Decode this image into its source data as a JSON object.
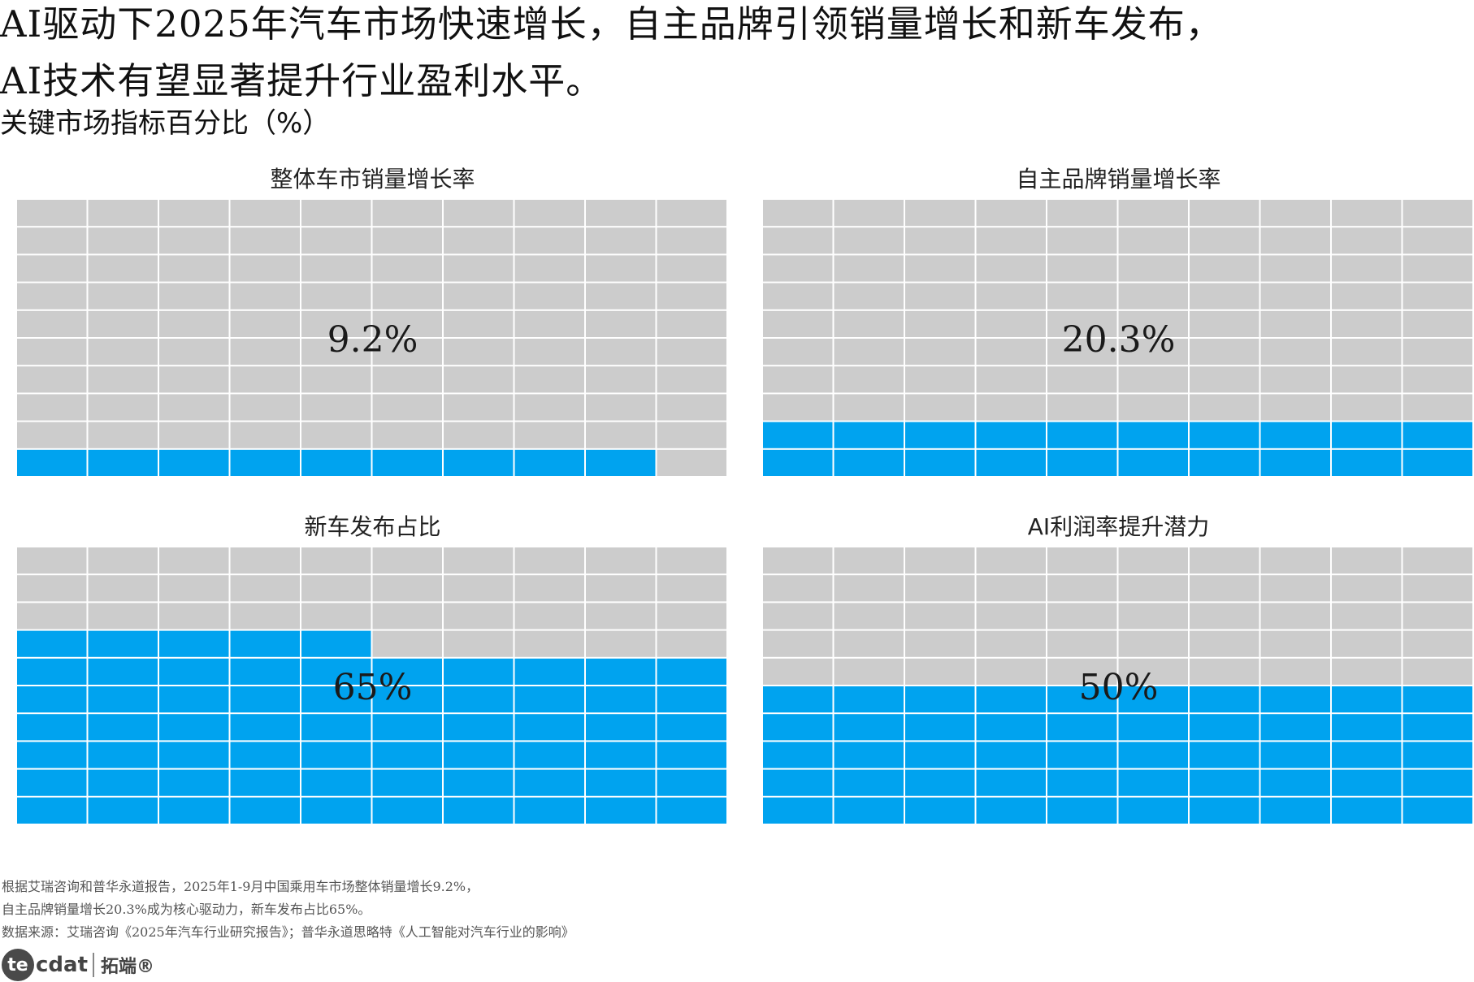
{
  "title": {
    "line1": "AI驱动下2025年汽车市场快速增长，自主品牌引领销量增长和新车发布，",
    "line2": "AI技术有望显著提升行业盈利水平。"
  },
  "subtitle": "关键市场指标百分比（%）",
  "colors": {
    "filled": "#00A3EF",
    "empty": "#CCCCCC",
    "gridline": "#FFFFFF"
  },
  "chart_data": {
    "type": "waffle",
    "grid": {
      "rows": 10,
      "cols": 10
    },
    "fill_order": "bottom-to-top, left-to-right",
    "panels": [
      {
        "title": "整体车市销量增长率",
        "value": 9.2,
        "label": "9.2%"
      },
      {
        "title": "自主品牌销量增长率",
        "value": 20.3,
        "label": "20.3%"
      },
      {
        "title": "新车发布占比",
        "value": 65,
        "label": "65%"
      },
      {
        "title": "AI利润率提升潜力",
        "value": 50,
        "label": "50%"
      }
    ]
  },
  "footer": {
    "line1": "根据艾瑞咨询和普华永道报告，2025年1-9月中国乘用车市场整体销量增长9.2%，",
    "line2": "自主品牌销量增长20.3%成为核心驱动力，新车发布占比65%。",
    "line3": "数据来源：艾瑞咨询《2025年汽车行业研究报告》；普华永道思略特《人工智能对汽车行业的影响》"
  },
  "logo": {
    "circle_text": "te",
    "en": "cdat",
    "cn": "拓端®"
  }
}
